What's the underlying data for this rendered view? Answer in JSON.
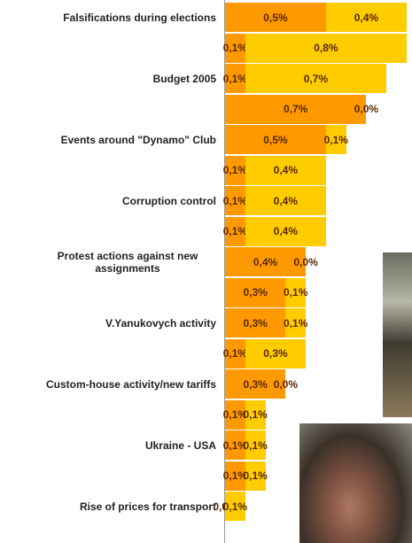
{
  "chart_data": {
    "type": "stacked-bar-horizontal",
    "categories": [
      "Falsifications during elections",
      null,
      "Budget 2005",
      null,
      "Events around \"Dynamo\" Club",
      null,
      "Corruption control",
      null,
      "Protest actions against new assignments",
      null,
      "V.Yanukovych activity",
      null,
      "Custom-house activity/new tariffs",
      null,
      "Ukraine - USA",
      null,
      "Rise of prices for transport"
    ],
    "series": [
      {
        "color": "#ff9900",
        "values": [
          0.5,
          0.1,
          0.1,
          0.7,
          0.5,
          0.1,
          0.1,
          0.1,
          0.4,
          0.3,
          0.3,
          0.1,
          0.3,
          0.1,
          0.1,
          0.1,
          0.0
        ],
        "value_labels": [
          "0,5%",
          "0,1%",
          "0,1%",
          "0,7%",
          "0,5%",
          "0,1%",
          "0,1%",
          "0,1%",
          "0,4%",
          "0,3%",
          "0,3%",
          "0,1%",
          "0,3%",
          "0,1%",
          "0,1%",
          "0,1%",
          "0,0%"
        ]
      },
      {
        "color": "#ffcc00",
        "values": [
          0.4,
          0.8,
          0.7,
          0.0,
          0.1,
          0.4,
          0.4,
          0.4,
          0.0,
          0.1,
          0.1,
          0.3,
          0.0,
          0.1,
          0.1,
          0.1,
          0.1
        ],
        "value_labels": [
          "0,4%",
          "0,8%",
          "0,7%",
          "0,0%",
          "0,1%",
          "0,4%",
          "0,4%",
          "0,4%",
          "0,0%",
          "0,1%",
          "0,1%",
          "0,3%",
          "0,0%",
          "0,1%",
          "0,1%",
          "0,1%",
          "0,1%"
        ]
      }
    ]
  }
}
